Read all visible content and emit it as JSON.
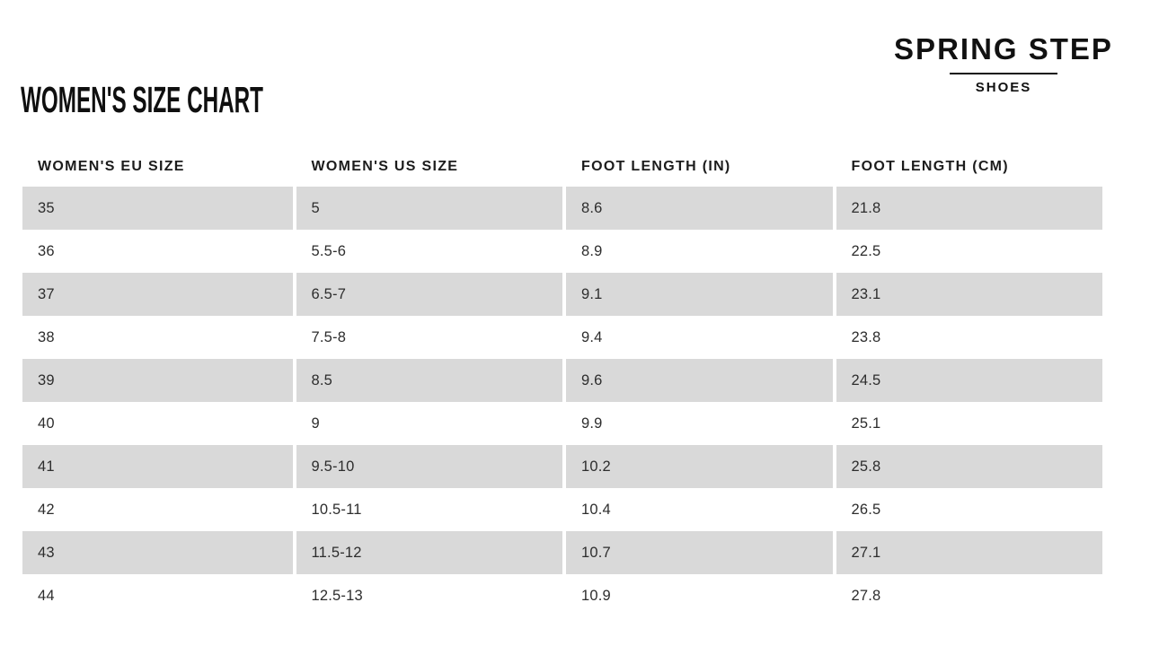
{
  "page": {
    "title": "WOMEN'S SIZE CHART"
  },
  "brand": {
    "name": "SPRING STEP",
    "tagline": "SHOES"
  },
  "table": {
    "columns": [
      "WOMEN'S EU SIZE",
      "WOMEN'S US SIZE",
      "FOOT LENGTH (IN)",
      "FOOT LENGTH (CM)"
    ],
    "rows": [
      [
        "35",
        "5",
        "8.6",
        "21.8"
      ],
      [
        "36",
        "5.5-6",
        "8.9",
        "22.5"
      ],
      [
        "37",
        "6.5-7",
        "9.1",
        "23.1"
      ],
      [
        "38",
        "7.5-8",
        "9.4",
        "23.8"
      ],
      [
        "39",
        "8.5",
        "9.6",
        "24.5"
      ],
      [
        "40",
        "9",
        "9.9",
        "25.1"
      ],
      [
        "41",
        "9.5-10",
        "10.2",
        "25.8"
      ],
      [
        "42",
        "10.5-11",
        "10.4",
        "26.5"
      ],
      [
        "43",
        "11.5-12",
        "10.7",
        "27.1"
      ],
      [
        "44",
        "12.5-13",
        "10.9",
        "27.8"
      ]
    ]
  },
  "colors": {
    "row_stripe": "#d9d9d9",
    "ink": "#111111",
    "body_text": "#2d2d2d",
    "background": "#ffffff"
  },
  "chart_data": {
    "type": "table",
    "title": "WOMEN'S SIZE CHART",
    "columns": [
      "WOMEN'S EU SIZE",
      "WOMEN'S US SIZE",
      "FOOT LENGTH (IN)",
      "FOOT LENGTH (CM)"
    ],
    "rows": [
      [
        "35",
        "5",
        "8.6",
        "21.8"
      ],
      [
        "36",
        "5.5-6",
        "8.9",
        "22.5"
      ],
      [
        "37",
        "6.5-7",
        "9.1",
        "23.1"
      ],
      [
        "38",
        "7.5-8",
        "9.4",
        "23.8"
      ],
      [
        "39",
        "8.5",
        "9.6",
        "24.5"
      ],
      [
        "40",
        "9",
        "9.9",
        "25.1"
      ],
      [
        "41",
        "9.5-10",
        "10.2",
        "25.8"
      ],
      [
        "42",
        "10.5-11",
        "10.4",
        "26.5"
      ],
      [
        "43",
        "11.5-12",
        "10.7",
        "27.1"
      ],
      [
        "44",
        "12.5-13",
        "10.9",
        "27.8"
      ]
    ],
    "layout_hints": {
      "stripe_color": "#d9d9d9",
      "striped_rows": "odd",
      "grid": "none"
    }
  }
}
